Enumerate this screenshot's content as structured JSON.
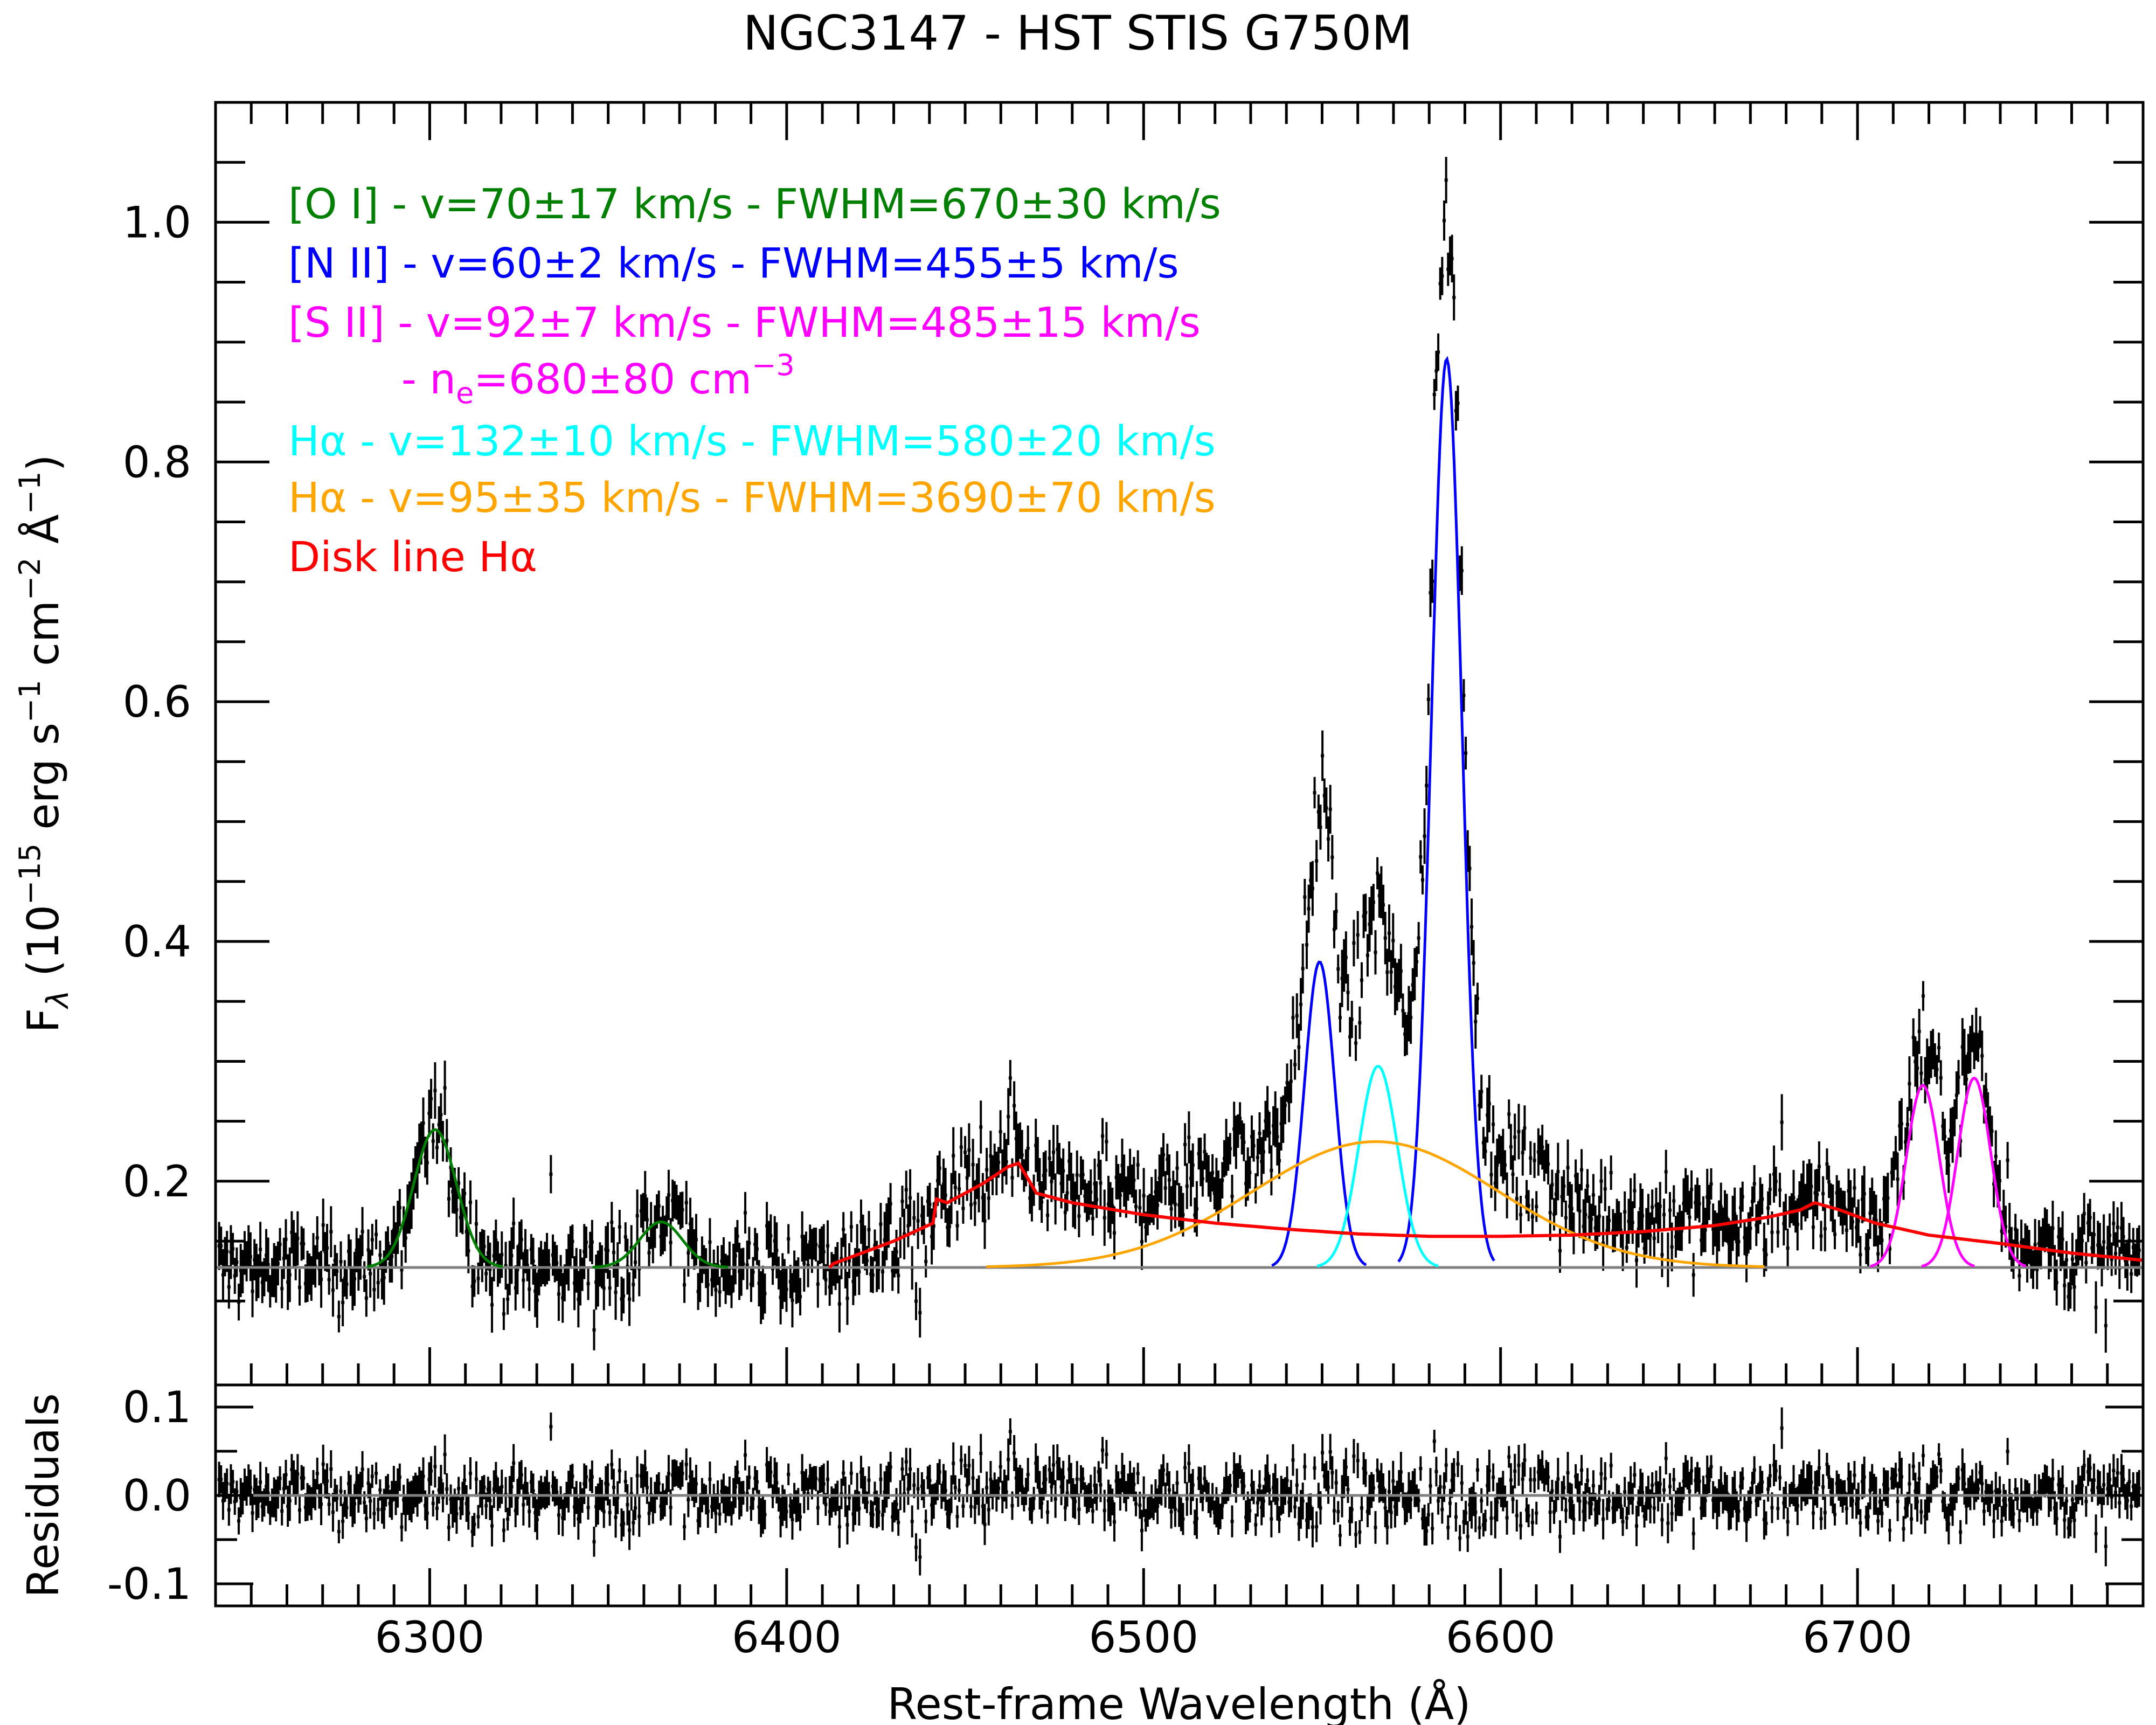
{
  "chart_data": [
    {
      "type": "line",
      "title": "NGC3147 - HST STIS G750M",
      "xlabel": "Rest-frame Wavelength (Å)",
      "ylabel": "F_λ (10^−15 erg s^−1 cm^−2 Å^−1)",
      "xlim": [
        6240,
        6780
      ],
      "ylim": [
        0.03,
        1.1
      ],
      "x_ticks": [
        6300,
        6400,
        6500,
        6600,
        6700
      ],
      "y_ticks": [
        0.2,
        0.4,
        0.6,
        0.8,
        1.0
      ],
      "x_tick_labels": [
        "6300",
        "6400",
        "6500",
        "6600",
        "6700"
      ],
      "y_tick_labels": [
        "0.2",
        "0.4",
        "0.6",
        "0.8",
        "1.0"
      ],
      "grid": false,
      "legend_placement": "top-left",
      "continuum_level": 0.128,
      "series": [
        {
          "name": "[O I] - v=70±17 km/s - FWHM=670±30 km/s",
          "color": "#008000",
          "components": [
            {
              "center": 6301.5,
              "amplitude": 0.115,
              "fwhm": 14.1
            },
            {
              "center": 6364.8,
              "amplitude": 0.038,
              "fwhm": 14.2
            }
          ]
        },
        {
          "name": "[N II] - v=60±2 km/s - FWHM=455±5 km/s",
          "color": "#0000ff",
          "components": [
            {
              "center": 6549.3,
              "amplitude": 0.255,
              "fwhm": 9.9
            },
            {
              "center": 6584.9,
              "amplitude": 0.758,
              "fwhm": 10.0
            }
          ]
        },
        {
          "name": "[S II] - v=92±7 km/s - FWHM=485±15 km/s",
          "color": "#ff00ff",
          "components": [
            {
              "center": 6718.3,
              "amplitude": 0.152,
              "fwhm": 10.9
            },
            {
              "center": 6732.7,
              "amplitude": 0.158,
              "fwhm": 10.9
            }
          ]
        },
        {
          "name": "Hα - v=132±10 km/s - FWHM=580±20 km/s",
          "color": "#00ffff",
          "components": [
            {
              "center": 6565.7,
              "amplitude": 0.168,
              "fwhm": 12.7
            }
          ]
        },
        {
          "name": "Hα - v=95±35 km/s - FWHM=3690±70 km/s",
          "color": "#ffa500",
          "components": [
            {
              "center": 6565.0,
              "amplitude": 0.105,
              "fwhm": 80.8
            }
          ]
        },
        {
          "name": "Disk line Hα",
          "color": "#ff0000",
          "x": [
            6412,
            6430,
            6441,
            6442,
            6445,
            6455,
            6462,
            6465,
            6470,
            6480,
            6500,
            6520,
            6540,
            6560,
            6580,
            6600,
            6620,
            6640,
            6660,
            6675,
            6684,
            6688,
            6695,
            6705,
            6720,
            6740,
            6760,
            6780
          ],
          "y": [
            0.13,
            0.15,
            0.165,
            0.185,
            0.182,
            0.198,
            0.212,
            0.215,
            0.19,
            0.182,
            0.172,
            0.165,
            0.16,
            0.156,
            0.154,
            0.154,
            0.155,
            0.158,
            0.163,
            0.17,
            0.176,
            0.182,
            0.176,
            0.165,
            0.155,
            0.148,
            0.14,
            0.134
          ]
        }
      ],
      "legend_entries": [
        {
          "text": "[O I] - v=70±17 km/s - FWHM=670±30 km/s",
          "color": "#008000"
        },
        {
          "text": "[N II] - v=60±2 km/s - FWHM=455±5 km/s",
          "color": "#0000ff"
        },
        {
          "text": "[S II] - v=92±7 km/s - FWHM=485±15 km/s",
          "color": "#ff00ff"
        },
        {
          "text": "Hα - v=132±10 km/s - FWHM=580±20 km/s",
          "color": "#00ffff"
        },
        {
          "text": "Hα - v=95±35 km/s - FWHM=3690±70 km/s",
          "color": "#ffa500"
        },
        {
          "text": "Disk line Hα",
          "color": "#ff0000"
        }
      ],
      "legend_extra": {
        "sii_density_line": "- n_e=680±80 cm^−3",
        "color": "#ff00ff"
      },
      "data_color": "#000000",
      "continuum_color": "#808080"
    },
    {
      "type": "scatter",
      "ylabel": "Residuals",
      "xlim": [
        6240,
        6780
      ],
      "ylim": [
        -0.125,
        0.125
      ],
      "y_ticks": [
        -0.1,
        0.0,
        0.1
      ],
      "y_tick_labels": [
        "-0.1",
        "0.0",
        "0.1"
      ],
      "zero_line": 0.0,
      "grid": false
    }
  ]
}
